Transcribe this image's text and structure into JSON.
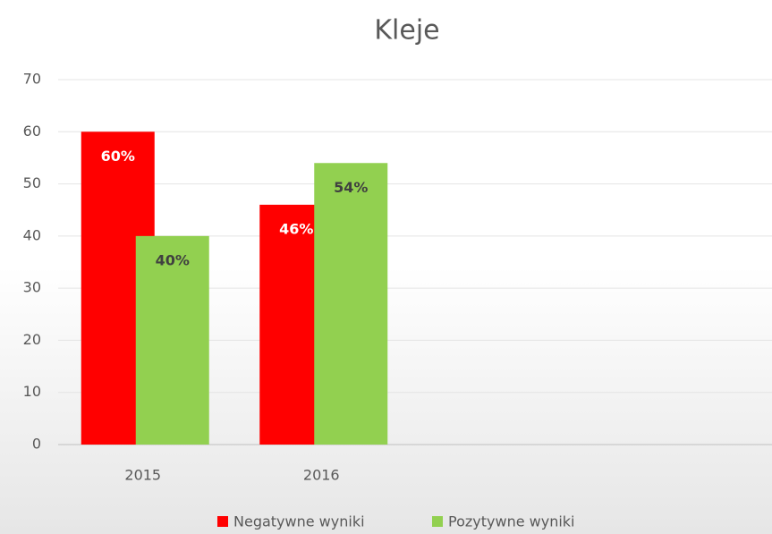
{
  "chart_data": {
    "type": "bar",
    "title": "Kleje",
    "categories": [
      "2015",
      "2016",
      null,
      null
    ],
    "series": [
      {
        "name": "Negatywne wyniki",
        "color": "#ff0000",
        "values": [
          60,
          46,
          null,
          null
        ],
        "value_labels": [
          "60%",
          "46%",
          null,
          null
        ]
      },
      {
        "name": "Pozytywne wyniki",
        "color": "#92d050",
        "values": [
          40,
          54,
          null,
          null
        ],
        "value_labels": [
          "40%",
          "54%",
          null,
          null
        ]
      }
    ],
    "ylim": [
      0,
      70
    ],
    "yticks": [
      0,
      10,
      20,
      30,
      40,
      50,
      60,
      70
    ],
    "grid": true,
    "legend": "bottom"
  }
}
